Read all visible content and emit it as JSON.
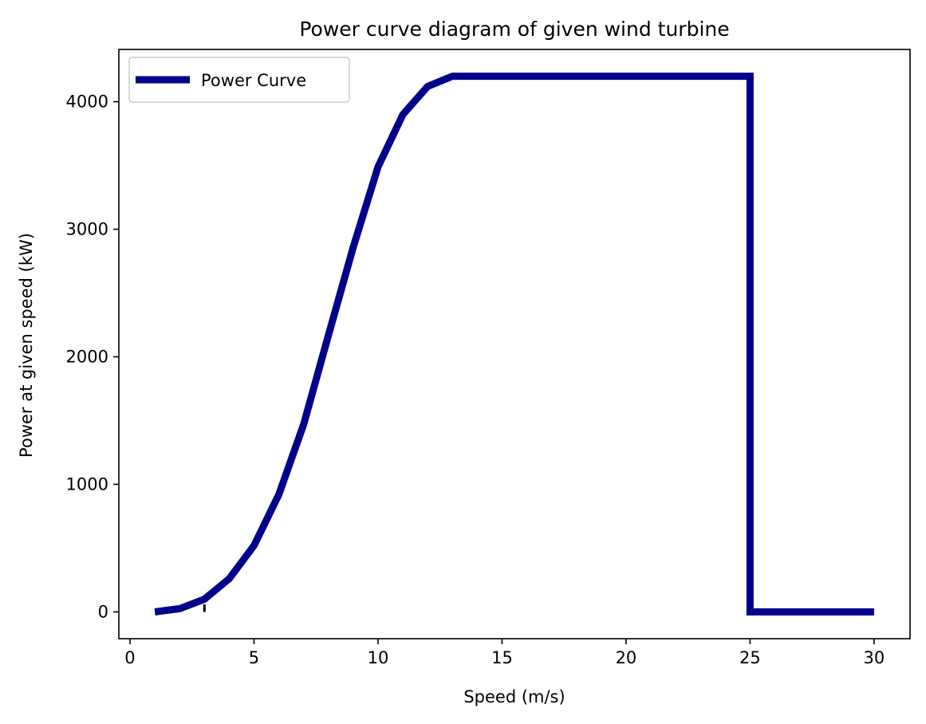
{
  "chart_data": {
    "type": "line",
    "title": "Power curve diagram of given wind turbine",
    "xlabel": "Speed (m/s)",
    "ylabel": "Power at given speed (kW)",
    "xlim": [
      -0.45,
      31.45
    ],
    "ylim": [
      -210,
      4410
    ],
    "x_ticks": [
      0,
      5,
      10,
      15,
      20,
      25,
      30
    ],
    "y_ticks": [
      0,
      1000,
      2000,
      3000,
      4000
    ],
    "legend": {
      "position": "upper-left",
      "entries": [
        "Power Curve"
      ]
    },
    "grid": false,
    "series": [
      {
        "name": "Power Curve",
        "color": "#00008b",
        "x": [
          1,
          2,
          3,
          4,
          5,
          6,
          7,
          8,
          9,
          10,
          11,
          12,
          13,
          14,
          15,
          16,
          17,
          18,
          19,
          20,
          21,
          22,
          23,
          24,
          25,
          25,
          26,
          27,
          28,
          29,
          30
        ],
        "y": [
          0,
          25,
          100,
          260,
          520,
          920,
          1470,
          2170,
          2860,
          3490,
          3900,
          4120,
          4200,
          4200,
          4200,
          4200,
          4200,
          4200,
          4200,
          4200,
          4200,
          4200,
          4200,
          4200,
          4200,
          0,
          0,
          0,
          0,
          0,
          0
        ]
      }
    ],
    "annotations": [
      {
        "type": "vertical-tick-mark",
        "x": 3,
        "y_from": 0,
        "y_to": 60,
        "color": "#000000"
      }
    ]
  }
}
